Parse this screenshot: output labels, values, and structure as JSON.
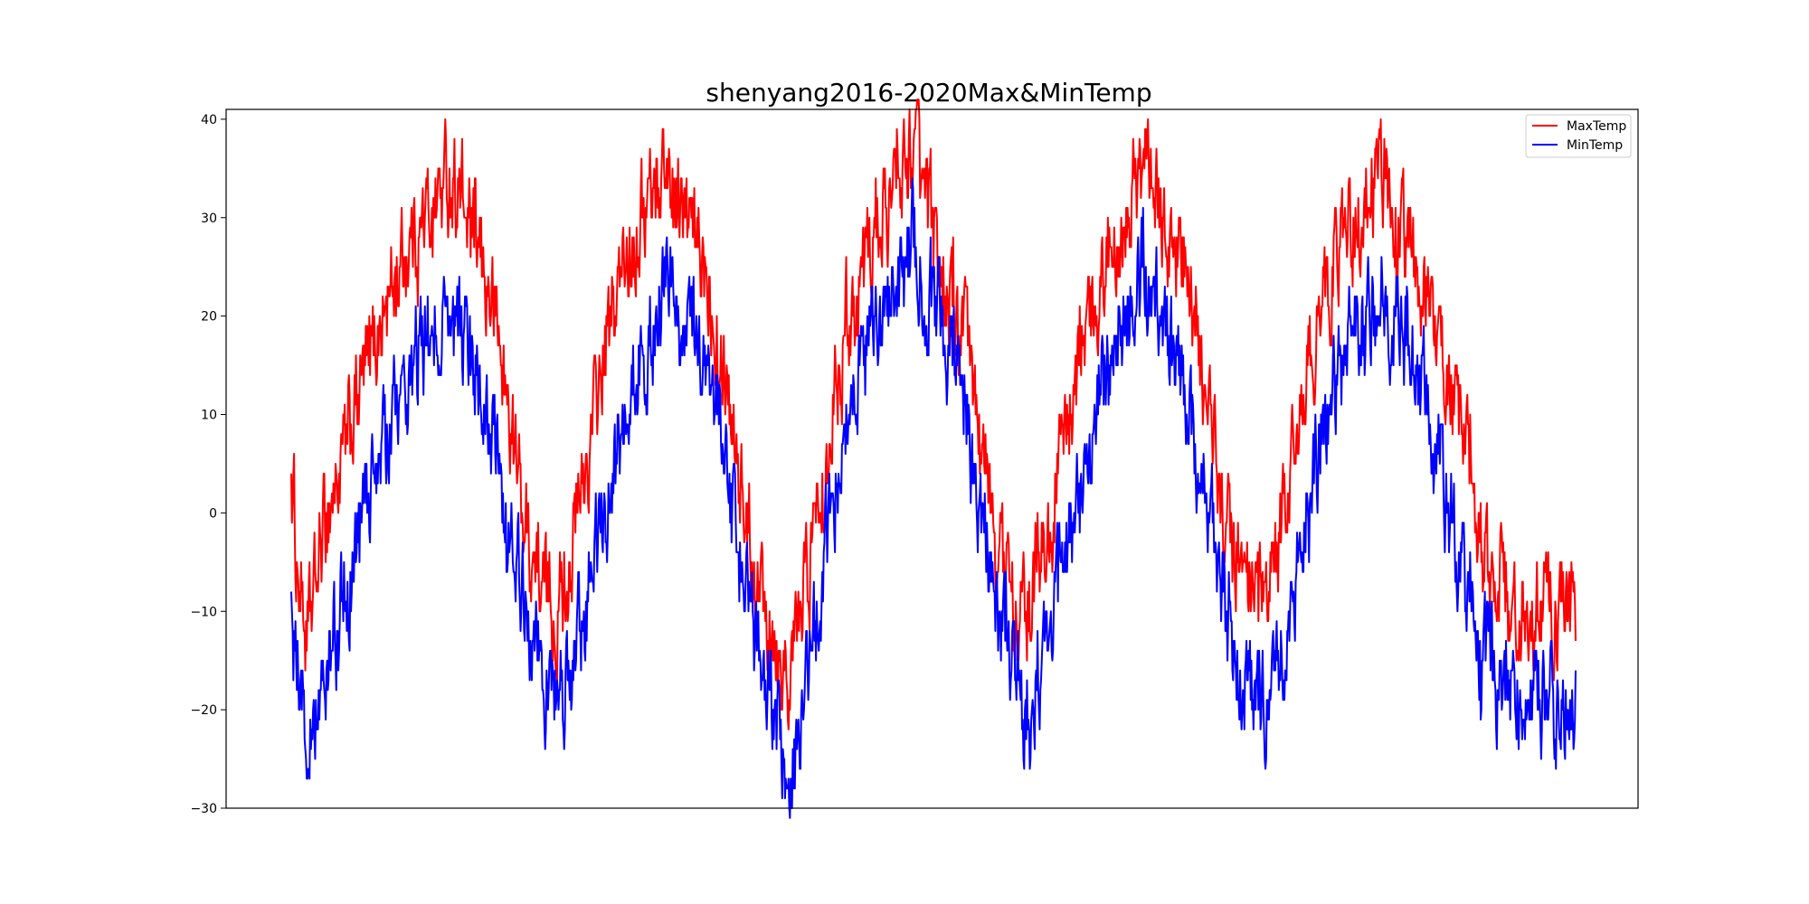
{
  "chart_data": {
    "type": "line",
    "title": "shenyang2016-2020Max&MinTemp",
    "xlabel": "",
    "ylabel": "",
    "ylim": [
      -30,
      41
    ],
    "yticks": [
      -30,
      -20,
      -10,
      0,
      10,
      20,
      30,
      40
    ],
    "grid": false,
    "legend": "top-right",
    "x_count": 1827,
    "series": [
      {
        "name": "MaxTemp",
        "color": "#ff0000",
        "keypoints": [
          [
            0,
            4
          ],
          [
            8,
            -5
          ],
          [
            15,
            -8
          ],
          [
            22,
            -14
          ],
          [
            35,
            -7
          ],
          [
            50,
            0
          ],
          [
            65,
            3
          ],
          [
            80,
            7
          ],
          [
            95,
            12
          ],
          [
            110,
            15
          ],
          [
            125,
            19
          ],
          [
            140,
            22
          ],
          [
            155,
            25
          ],
          [
            170,
            28
          ],
          [
            185,
            29
          ],
          [
            200,
            31
          ],
          [
            215,
            33
          ],
          [
            230,
            34
          ],
          [
            245,
            31
          ],
          [
            260,
            27
          ],
          [
            275,
            24
          ],
          [
            290,
            20
          ],
          [
            305,
            12
          ],
          [
            320,
            5
          ],
          [
            335,
            -2
          ],
          [
            350,
            -6
          ],
          [
            366,
            -9
          ],
          [
            380,
            -10
          ],
          [
            395,
            -5
          ],
          [
            410,
            1
          ],
          [
            425,
            7
          ],
          [
            440,
            14
          ],
          [
            455,
            19
          ],
          [
            470,
            24
          ],
          [
            485,
            28
          ],
          [
            500,
            31
          ],
          [
            515,
            33
          ],
          [
            530,
            35
          ],
          [
            545,
            33
          ],
          [
            560,
            30
          ],
          [
            575,
            27
          ],
          [
            590,
            25
          ],
          [
            605,
            20
          ],
          [
            620,
            14
          ],
          [
            635,
            6
          ],
          [
            650,
            -2
          ],
          [
            665,
            -7
          ],
          [
            680,
            -10
          ],
          [
            695,
            -14
          ],
          [
            710,
            -16
          ],
          [
            725,
            -10
          ],
          [
            740,
            -3
          ],
          [
            755,
            4
          ],
          [
            770,
            12
          ],
          [
            785,
            18
          ],
          [
            800,
            22
          ],
          [
            815,
            26
          ],
          [
            830,
            29
          ],
          [
            845,
            31
          ],
          [
            860,
            33
          ],
          [
            875,
            36
          ],
          [
            885,
            38
          ],
          [
            895,
            33
          ],
          [
            910,
            29
          ],
          [
            925,
            25
          ],
          [
            940,
            21
          ],
          [
            955,
            18
          ],
          [
            970,
            12
          ],
          [
            985,
            5
          ],
          [
            1000,
            -2
          ],
          [
            1015,
            -6
          ],
          [
            1030,
            -9
          ],
          [
            1045,
            -12
          ],
          [
            1060,
            -6
          ],
          [
            1075,
            -2
          ],
          [
            1090,
            4
          ],
          [
            1105,
            10
          ],
          [
            1120,
            15
          ],
          [
            1135,
            19
          ],
          [
            1150,
            24
          ],
          [
            1165,
            27
          ],
          [
            1180,
            30
          ],
          [
            1195,
            33
          ],
          [
            1210,
            35
          ],
          [
            1225,
            33
          ],
          [
            1240,
            30
          ],
          [
            1255,
            27
          ],
          [
            1270,
            24
          ],
          [
            1285,
            18
          ],
          [
            1300,
            12
          ],
          [
            1315,
            5
          ],
          [
            1330,
            -1
          ],
          [
            1345,
            -5
          ],
          [
            1360,
            -9
          ],
          [
            1375,
            -11
          ],
          [
            1390,
            -8
          ],
          [
            1405,
            -3
          ],
          [
            1420,
            4
          ],
          [
            1435,
            10
          ],
          [
            1450,
            16
          ],
          [
            1465,
            21
          ],
          [
            1480,
            25
          ],
          [
            1495,
            28
          ],
          [
            1510,
            30
          ],
          [
            1525,
            31
          ],
          [
            1540,
            33
          ],
          [
            1555,
            34
          ],
          [
            1570,
            31
          ],
          [
            1585,
            28
          ],
          [
            1600,
            25
          ],
          [
            1615,
            22
          ],
          [
            1630,
            19
          ],
          [
            1645,
            14
          ],
          [
            1660,
            8
          ],
          [
            1675,
            3
          ],
          [
            1690,
            -3
          ],
          [
            1705,
            -7
          ],
          [
            1715,
            -9
          ],
          [
            1722,
            -4
          ],
          [
            1726,
            -10
          ]
        ]
      },
      {
        "name": "MinTemp",
        "color": "#0000ff",
        "keypoints": [
          [
            0,
            -8
          ],
          [
            8,
            -18
          ],
          [
            15,
            -20
          ],
          [
            22,
            -27
          ],
          [
            35,
            -19
          ],
          [
            50,
            -16
          ],
          [
            65,
            -12
          ],
          [
            80,
            -7
          ],
          [
            95,
            -3
          ],
          [
            110,
            2
          ],
          [
            125,
            6
          ],
          [
            140,
            9
          ],
          [
            155,
            12
          ],
          [
            170,
            15
          ],
          [
            185,
            17
          ],
          [
            200,
            19
          ],
          [
            215,
            21
          ],
          [
            230,
            22
          ],
          [
            245,
            18
          ],
          [
            260,
            14
          ],
          [
            275,
            10
          ],
          [
            290,
            6
          ],
          [
            305,
            1
          ],
          [
            320,
            -5
          ],
          [
            335,
            -10
          ],
          [
            350,
            -15
          ],
          [
            366,
            -18
          ],
          [
            380,
            -20
          ],
          [
            395,
            -17
          ],
          [
            410,
            -12
          ],
          [
            425,
            -7
          ],
          [
            440,
            -2
          ],
          [
            455,
            3
          ],
          [
            470,
            8
          ],
          [
            485,
            12
          ],
          [
            500,
            16
          ],
          [
            515,
            19
          ],
          [
            530,
            22
          ],
          [
            545,
            21
          ],
          [
            560,
            19
          ],
          [
            575,
            17
          ],
          [
            590,
            15
          ],
          [
            605,
            10
          ],
          [
            620,
            3
          ],
          [
            635,
            -4
          ],
          [
            650,
            -10
          ],
          [
            665,
            -15
          ],
          [
            680,
            -18
          ],
          [
            695,
            -23
          ],
          [
            710,
            -27
          ],
          [
            725,
            -20
          ],
          [
            740,
            -14
          ],
          [
            755,
            -6
          ],
          [
            770,
            2
          ],
          [
            785,
            8
          ],
          [
            800,
            13
          ],
          [
            815,
            17
          ],
          [
            830,
            20
          ],
          [
            845,
            22
          ],
          [
            860,
            23
          ],
          [
            875,
            25
          ],
          [
            885,
            27
          ],
          [
            895,
            24
          ],
          [
            910,
            21
          ],
          [
            925,
            19
          ],
          [
            940,
            15
          ],
          [
            955,
            12
          ],
          [
            970,
            5
          ],
          [
            985,
            -2
          ],
          [
            1000,
            -8
          ],
          [
            1015,
            -13
          ],
          [
            1030,
            -17
          ],
          [
            1045,
            -23
          ],
          [
            1060,
            -18
          ],
          [
            1075,
            -14
          ],
          [
            1090,
            -9
          ],
          [
            1105,
            -3
          ],
          [
            1120,
            3
          ],
          [
            1135,
            8
          ],
          [
            1150,
            13
          ],
          [
            1165,
            16
          ],
          [
            1180,
            19
          ],
          [
            1195,
            22
          ],
          [
            1210,
            25
          ],
          [
            1225,
            23
          ],
          [
            1240,
            20
          ],
          [
            1255,
            17
          ],
          [
            1270,
            13
          ],
          [
            1285,
            7
          ],
          [
            1300,
            2
          ],
          [
            1315,
            -4
          ],
          [
            1330,
            -10
          ],
          [
            1345,
            -14
          ],
          [
            1360,
            -17
          ],
          [
            1375,
            -20
          ],
          [
            1390,
            -21
          ],
          [
            1405,
            -16
          ],
          [
            1420,
            -10
          ],
          [
            1435,
            -4
          ],
          [
            1450,
            2
          ],
          [
            1465,
            7
          ],
          [
            1480,
            12
          ],
          [
            1495,
            15
          ],
          [
            1510,
            18
          ],
          [
            1525,
            19
          ],
          [
            1540,
            21
          ],
          [
            1555,
            22
          ],
          [
            1570,
            20
          ],
          [
            1585,
            17
          ],
          [
            1600,
            14
          ],
          [
            1615,
            10
          ],
          [
            1630,
            6
          ],
          [
            1645,
            1
          ],
          [
            1660,
            -4
          ],
          [
            1675,
            -9
          ],
          [
            1690,
            -13
          ],
          [
            1705,
            -16
          ],
          [
            1715,
            -18
          ],
          [
            1722,
            -19
          ],
          [
            1726,
            -19
          ]
        ]
      }
    ]
  }
}
